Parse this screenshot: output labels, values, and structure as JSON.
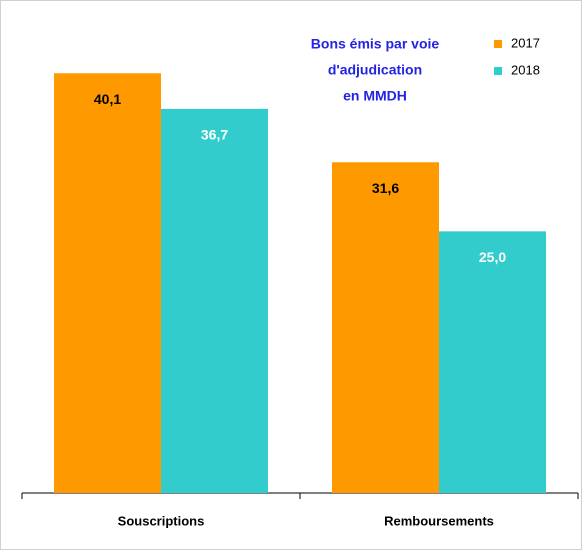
{
  "chart_data": {
    "type": "bar",
    "title": [
      "Bons émis par voie",
      "d'adjudication",
      "en MMDH"
    ],
    "categories": [
      "Souscriptions",
      "Remboursements"
    ],
    "series": [
      {
        "name": "2017",
        "color": "#ff9900",
        "values": [
          40.1,
          31.6
        ],
        "value_labels": [
          "40,1",
          "31,6"
        ]
      },
      {
        "name": "2018",
        "color": "#33cccc",
        "values": [
          36.7,
          25.0
        ],
        "value_labels": [
          "36,7",
          "25,0"
        ]
      }
    ],
    "ylim": [
      0,
      45
    ],
    "legend": "top-right"
  }
}
